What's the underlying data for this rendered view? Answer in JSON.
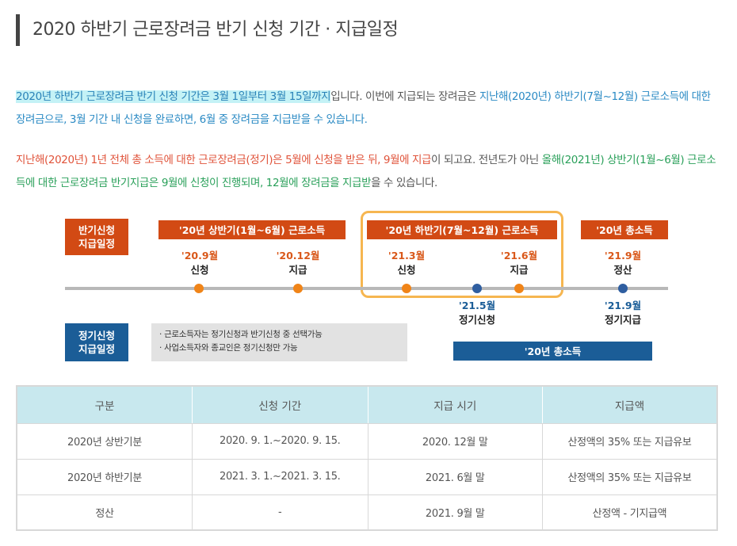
{
  "title": "2020 하반기 근로장려금 반기 신청 기간 · 지급일정",
  "para1": {
    "highlight": "2020년 하반기 근로장려금 반기 신청 기간은 3월 1일부터 3월 15일까지",
    "mid": "입니다. 이번에 지급되는 장려금은 ",
    "blue": "지난해(2020년) 하반기(7월~12월) 근로소득에 대한 장려금으로, 3월 기간 내 신청을 완료하면, 6월 중 장려금을 지급받을 수 있습니다."
  },
  "para2": {
    "red1": "지난해(2020년) 1년 전체 총 소득에 대한 근로장려금(정기)은 5월에 신청을 받은 뒤, 9월에 지급",
    "mid": "이 되고요. 전년도가 아닌 ",
    "green1": "올해(2021년) 상반기(1월~6월) 근로소득에 대한 근로장려금 반기지급은 9월에 신청이 진행되며, 12월에 장려금을 지급받",
    "end": "을 수 있습니다."
  },
  "timeline": {
    "semi_label_line1": "반기신청",
    "semi_label_line2": "지급일정",
    "regular_label_line1": "정기신청",
    "regular_label_line2": "지급일정",
    "period1": "'20년 상반기(1월~6월) 근로소득",
    "period2": "'20년 하반기(7월~12월) 근로소득",
    "period3": "'20년 총소득",
    "period_regular": "'20년 총소득",
    "events_top": [
      {
        "date": "'20.9월",
        "label": "신청"
      },
      {
        "date": "'20.12월",
        "label": "지급"
      },
      {
        "date": "'21.3월",
        "label": "신청"
      },
      {
        "date": "'21.6월",
        "label": "지급"
      },
      {
        "date": "'21.9월",
        "label": "정산"
      }
    ],
    "events_bottom": [
      {
        "date": "'21.5월",
        "label": "정기신청"
      },
      {
        "date": "'21.9월",
        "label": "정기지급"
      }
    ],
    "notes": [
      "· 근로소득자는 정기신청과 반기신청 중 선택가능",
      "· 사업소득자와 종교인은 정기신청만 가능"
    ],
    "colors": {
      "orange": "#d24a14",
      "navy": "#1b5d97",
      "highlight_border": "#f6b650"
    }
  },
  "table": {
    "headers": [
      "구분",
      "신청 기간",
      "지급 시기",
      "지급액"
    ],
    "rows": [
      [
        "2020년 상반기분",
        "2020. 9. 1.~2020. 9. 15.",
        "2020. 12월 말",
        "산정액의 35% 또는 지급유보"
      ],
      [
        "2020년 하반기분",
        "2021. 3. 1.~2021. 3. 15.",
        "2021. 6월 말",
        "산정액의 35% 또는 지급유보"
      ],
      [
        "정산",
        "-",
        "2021. 9월 말",
        "산정액 - 기지급액"
      ]
    ]
  }
}
